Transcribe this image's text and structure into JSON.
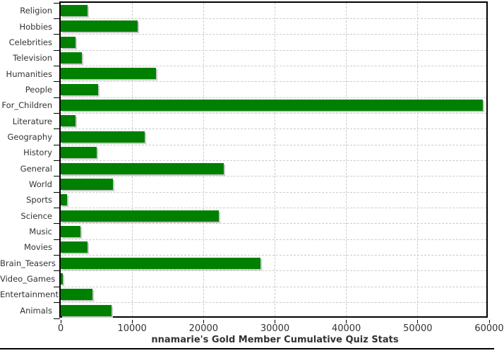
{
  "chart_data": {
    "type": "bar",
    "orientation": "horizontal",
    "title": "nnamarie's Gold Member Cumulative Quiz Stats",
    "categories": [
      "Religion",
      "Hobbies",
      "Celebrities",
      "Television",
      "Humanities",
      "People",
      "For_Children",
      "Literature",
      "Geography",
      "History",
      "General",
      "World",
      "Sports",
      "Science",
      "Music",
      "Movies",
      "Brain_Teasers",
      "Video_Games",
      "Entertainment",
      "Animals"
    ],
    "values": [
      3800,
      10800,
      2100,
      3000,
      13300,
      5250,
      59100,
      2100,
      11800,
      5050,
      22800,
      7300,
      850,
      22150,
      2750,
      3750,
      28000,
      280,
      4400,
      7150
    ],
    "xlabel": "",
    "ylabel": "",
    "xlim": [
      0,
      60000
    ],
    "xtick_labels": [
      "0",
      "10000",
      "20000",
      "30000",
      "40000",
      "50000",
      "60000"
    ],
    "grid": {
      "vertical": true,
      "horizontal": true,
      "style": "dashed"
    },
    "legend": false,
    "colors": {
      "bar": "#008000",
      "bar_shadow": "#c9c9c9",
      "grid": "#cccccc",
      "axis": "#000000",
      "text": "#333333",
      "background": "#ffffff"
    }
  }
}
